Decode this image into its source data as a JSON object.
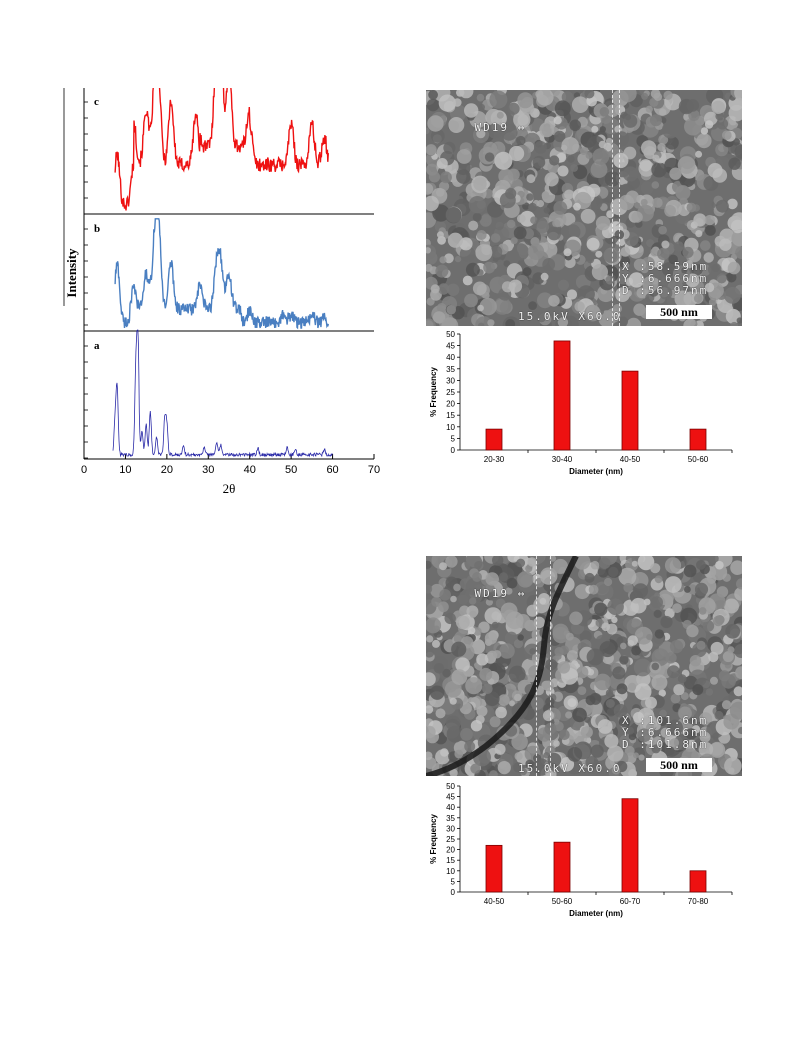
{
  "xrd": {
    "ylabel": "Intensity",
    "xlabel": "2θ",
    "xticks": [
      "0",
      "10",
      "20",
      "30",
      "40",
      "50",
      "60",
      "70"
    ],
    "panel_labels": [
      "c",
      "b",
      "a"
    ],
    "colors": {
      "c": "#ee1111",
      "b": "#4a7fc1",
      "a": "#2a2aa8"
    }
  },
  "sem_top": {
    "header": "WD19",
    "arrow_glyph": "↔",
    "x_meas": "X :58.59nm",
    "y_meas": "Y :6.666nm",
    "d_meas": "D :56.97nm",
    "beam": "15.0kV X60.0",
    "scale": "500 nm"
  },
  "sem_bottom": {
    "header": "WD19",
    "arrow_glyph": "↔",
    "x_meas": "X :101.6nm",
    "y_meas": "Y :6.666nm",
    "d_meas": "D :101.8nm",
    "beam": "15.0kV X60.0",
    "scale": "500 nm"
  },
  "chart_data": [
    {
      "type": "line",
      "title": "",
      "xlabel": "2θ",
      "ylabel": "Intensity",
      "xlim": [
        0,
        70
      ],
      "panel": "XRD",
      "series": [
        {
          "name": "c",
          "x": [
            8,
            12,
            15,
            17,
            18,
            21,
            27,
            32,
            33,
            35,
            40,
            50,
            55,
            58
          ],
          "y": [
            0.55,
            0.45,
            0.6,
            0.8,
            0.85,
            0.7,
            0.55,
            1.0,
            0.95,
            0.85,
            0.45,
            0.45,
            0.45,
            0.3
          ]
        },
        {
          "name": "b",
          "x": [
            8,
            12,
            15,
            17,
            18,
            21,
            28,
            32,
            33,
            35,
            40,
            48,
            50,
            55,
            58
          ],
          "y": [
            0.75,
            0.25,
            0.45,
            0.8,
            1.0,
            0.6,
            0.3,
            0.55,
            0.55,
            0.45,
            0.15,
            0.1,
            0.1,
            0.1,
            0.05
          ]
        },
        {
          "name": "a",
          "x": [
            7.5,
            8,
            12.5,
            13,
            14,
            15,
            16,
            17.5,
            19.5,
            20,
            24,
            29,
            32,
            33,
            42,
            49,
            51,
            58
          ],
          "y": [
            0.3,
            0.55,
            0.7,
            1.0,
            0.2,
            0.25,
            0.35,
            0.15,
            0.3,
            0.25,
            0.08,
            0.07,
            0.1,
            0.08,
            0.05,
            0.06,
            0.05,
            0.04
          ]
        }
      ]
    },
    {
      "type": "bar",
      "title": "",
      "categories": [
        "20-30",
        "30-40",
        "40-50",
        "50-60"
      ],
      "values": [
        9,
        47,
        34,
        9
      ],
      "xlabel": "Diameter (nm)",
      "ylabel": "% Frequency",
      "ylim": [
        0,
        50
      ],
      "yticks": [
        "0",
        "5",
        "10",
        "15",
        "20",
        "25",
        "30",
        "35",
        "40",
        "45",
        "50"
      ],
      "bar_color": "#ee1111"
    },
    {
      "type": "bar",
      "title": "",
      "categories": [
        "40-50",
        "50-60",
        "60-70",
        "70-80"
      ],
      "values": [
        22,
        23.5,
        44,
        10
      ],
      "xlabel": "Diameter (nm)",
      "ylabel": "% Frequency",
      "ylim": [
        0,
        50
      ],
      "yticks": [
        "0",
        "5",
        "10",
        "15",
        "20",
        "25",
        "30",
        "35",
        "40",
        "45",
        "50"
      ],
      "bar_color": "#ee1111"
    }
  ]
}
